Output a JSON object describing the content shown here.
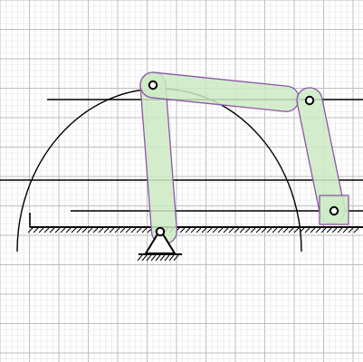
{
  "diagram": {
    "colors": {
      "background": "#ffffff",
      "grid_minor": "#e3e3e3",
      "grid_major": "#bdbdbd",
      "link_fill": "#cdebc4",
      "link_outline": "#8e55a8",
      "line": "#000000",
      "pin_fill": "#ffffff"
    },
    "components": [
      "grid-paper",
      "ground-hatch",
      "construction-lines",
      "arc",
      "crank-link",
      "coupler-link",
      "rocker-link",
      "slider-block",
      "pivot-joints",
      "fixed-pivot-support"
    ]
  }
}
